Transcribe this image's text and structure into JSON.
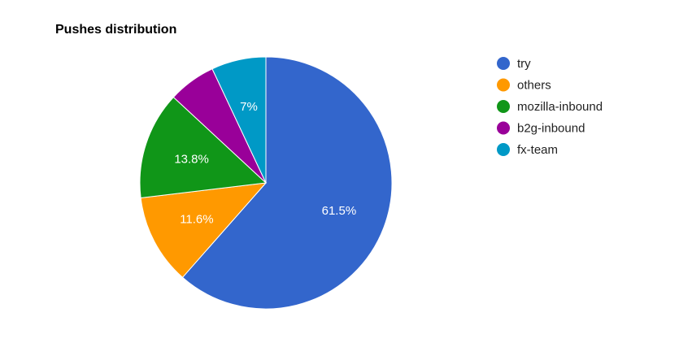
{
  "chart_data": {
    "type": "pie",
    "title": "Pushes distribution",
    "legend_position": "right",
    "slices": [
      {
        "label": "try",
        "value": 61.5,
        "display": "61.5%",
        "color": "#3366cc"
      },
      {
        "label": "others",
        "value": 11.6,
        "display": "11.6%",
        "color": "#ff9900"
      },
      {
        "label": "mozilla-inbound",
        "value": 13.8,
        "display": "13.8%",
        "color": "#109618"
      },
      {
        "label": "b2g-inbound",
        "value": 6.1,
        "display": "",
        "color": "#990099"
      },
      {
        "label": "fx-team",
        "value": 7.0,
        "display": "7%",
        "color": "#0099c6"
      }
    ]
  }
}
